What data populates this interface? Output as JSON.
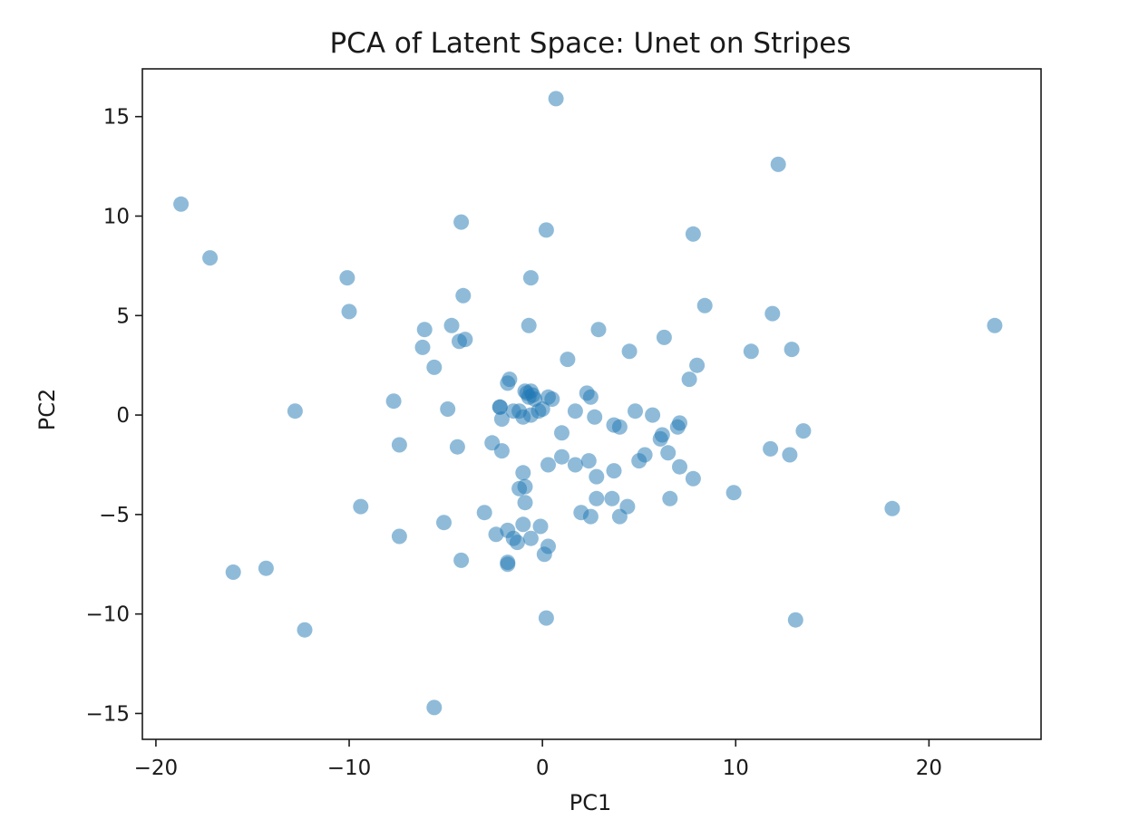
{
  "chart_data": {
    "type": "scatter",
    "title": "PCA of Latent Space: Unet on Stripes",
    "xlabel": "PC1",
    "ylabel": "PC2",
    "xlim": [
      -20.7,
      25.8
    ],
    "ylim": [
      -16.3,
      17.4
    ],
    "xticks": [
      -20,
      -10,
      0,
      10,
      20
    ],
    "xtick_labels": [
      "−20",
      "−10",
      "0",
      "10",
      "20"
    ],
    "yticks": [
      -15,
      -10,
      -5,
      0,
      5,
      10,
      15
    ],
    "ytick_labels": [
      "−15",
      "−10",
      "−5",
      "0",
      "5",
      "10",
      "15"
    ],
    "grid": false,
    "legend": "none",
    "marker_color": "#1f77b4",
    "marker_alpha": 0.5,
    "series": [
      {
        "x": [
          0.7,
          -18.7,
          -17.2,
          12.2,
          -4.2,
          0.2,
          7.8,
          -10.1,
          -10.0,
          -0.6,
          -4.1,
          8.4,
          -6.1,
          -4.7,
          -0.7,
          2.9,
          -6.2,
          -4.3,
          -4.0,
          6.3,
          4.5,
          10.8,
          12.9,
          23.4,
          1.3,
          -5.6,
          8.0,
          11.9,
          7.6,
          -1.8,
          -1.7,
          -2.2,
          -2.1,
          -1.5,
          -0.9,
          -0.8,
          -0.7,
          -0.6,
          -0.5,
          -0.4,
          -1.2,
          -0.2,
          0.0,
          0.3,
          0.5,
          2.3,
          2.5,
          -7.7,
          -12.8,
          -4.9,
          -2.1,
          -1.0,
          -0.6,
          1.7,
          2.7,
          4.8,
          5.7,
          3.7,
          4.0,
          7.1,
          7.0,
          6.2,
          6.1,
          1.0,
          13.5,
          -7.4,
          -2.6,
          -2.2,
          -4.4,
          11.8,
          12.8,
          0.3,
          1.0,
          1.7,
          2.4,
          2.8,
          3.7,
          5.0,
          5.3,
          6.5,
          7.1,
          7.8,
          9.9,
          -1.0,
          -1.2,
          -0.9,
          -9.4,
          -5.1,
          -3.0,
          -0.9,
          -1.0,
          2.0,
          2.5,
          3.6,
          2.8,
          4.0,
          4.4,
          6.6,
          18.1,
          -7.4,
          -2.4,
          -1.8,
          -1.5,
          -0.6,
          -0.1,
          0.3,
          -1.3,
          -1.8,
          -1.8,
          0.1,
          -4.2,
          -16.0,
          -14.3,
          -12.3,
          0.2,
          13.1,
          -5.6
        ],
        "y": [
          15.9,
          10.6,
          7.9,
          12.6,
          9.7,
          9.3,
          9.1,
          6.9,
          5.2,
          6.9,
          6.0,
          5.5,
          4.3,
          4.5,
          4.5,
          4.3,
          3.4,
          3.7,
          3.8,
          3.9,
          3.2,
          3.2,
          3.3,
          4.5,
          2.8,
          2.4,
          2.5,
          5.1,
          1.8,
          1.6,
          1.8,
          0.4,
          -0.2,
          0.2,
          1.2,
          1.1,
          0.9,
          1.2,
          1.0,
          0.8,
          0.2,
          0.2,
          0.3,
          0.9,
          0.8,
          1.1,
          0.9,
          0.7,
          0.2,
          0.3,
          -1.8,
          -0.1,
          0.0,
          0.2,
          -0.1,
          0.2,
          0.0,
          -0.5,
          -0.6,
          -0.4,
          -0.6,
          -1.0,
          -1.2,
          -0.9,
          -0.8,
          -1.5,
          -1.4,
          0.4,
          -1.6,
          -1.7,
          -2.0,
          -2.5,
          -2.1,
          -2.5,
          -2.3,
          -3.1,
          -2.8,
          -2.3,
          -2.0,
          -1.9,
          -2.6,
          -3.2,
          -3.9,
          -2.9,
          -3.7,
          -3.6,
          -4.6,
          -5.4,
          -4.9,
          -4.4,
          -5.5,
          -4.9,
          -5.1,
          -4.2,
          -4.2,
          -5.1,
          -4.6,
          -4.2,
          -4.7,
          -6.1,
          -6.0,
          -5.8,
          -6.2,
          -6.2,
          -5.6,
          -6.6,
          -6.4,
          -7.4,
          -7.5,
          -7.0,
          -7.3,
          -7.9,
          -7.7,
          -10.8,
          -10.2,
          -10.3,
          -14.7
        ]
      }
    ]
  }
}
